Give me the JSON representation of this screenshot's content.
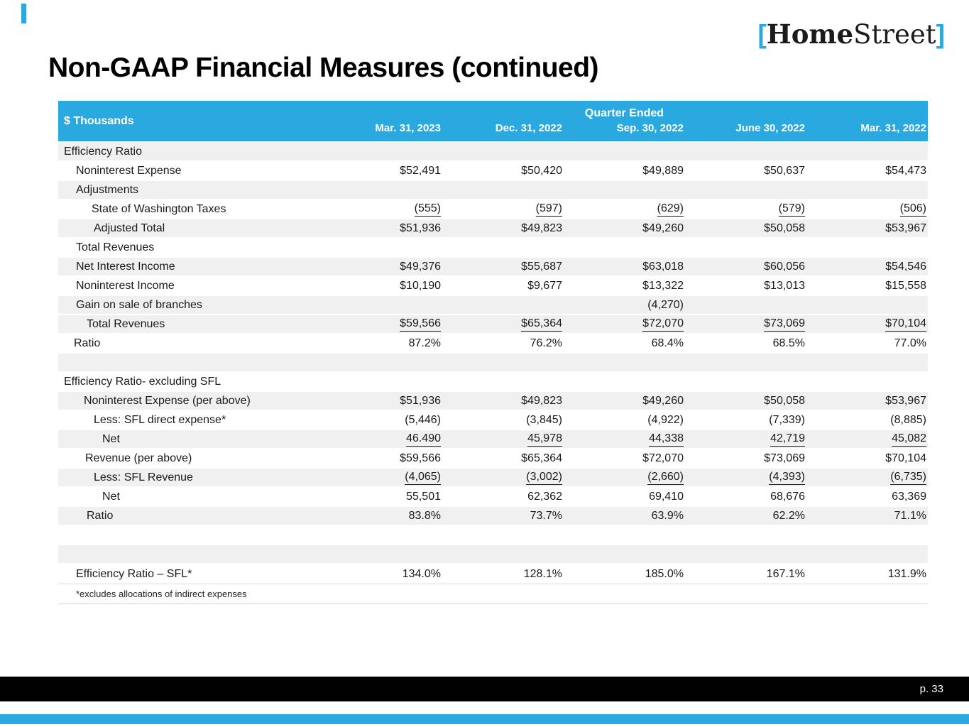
{
  "slide": {
    "title": "Non-GAAP Financial Measures (continued)",
    "logo": {
      "left_bracket": "[",
      "home": "Home",
      "street": "Street",
      "right_bracket": "]"
    },
    "page_number": "p. 33",
    "colors": {
      "accent_cyan": "#29A9E0",
      "row_shade": "#F0F0F0",
      "footer_black": "#010101"
    }
  },
  "table": {
    "unit_label": "$ Thousands",
    "group_header": "Quarter Ended",
    "columns": [
      "Mar. 31, 2023",
      "Dec. 31, 2022",
      "Sep. 30, 2022",
      "June 30, 2022",
      "Mar. 31, 2022"
    ],
    "rows": [
      {
        "type": "data",
        "label": "Efficiency Ratio",
        "indent": 8,
        "shaded": true,
        "underline": false,
        "values": [
          "",
          "",
          "",
          "",
          ""
        ]
      },
      {
        "type": "data",
        "label": "Noninterest Expense",
        "indent": 25,
        "shaded": false,
        "underline": false,
        "values": [
          "$52,491",
          "$50,420",
          "$49,889",
          "$50,637",
          "$54,473"
        ]
      },
      {
        "type": "data",
        "label": "Adjustments",
        "indent": 25,
        "shaded": true,
        "underline": false,
        "values": [
          "",
          "",
          "",
          "",
          ""
        ]
      },
      {
        "type": "data",
        "label": "State of Washington Taxes",
        "indent": 47,
        "shaded": false,
        "underline": true,
        "values": [
          "(555)",
          "(597)",
          "(629)",
          "(579)",
          "(506)"
        ]
      },
      {
        "type": "data",
        "label": "Adjusted Total",
        "indent": 50,
        "shaded": true,
        "underline": false,
        "values": [
          "$51,936",
          "$49,823",
          "$49,260",
          "$50,058",
          "$53,967"
        ]
      },
      {
        "type": "data",
        "label": "Total Revenues",
        "indent": 25,
        "shaded": false,
        "underline": false,
        "values": [
          "",
          "",
          "",
          "",
          ""
        ]
      },
      {
        "type": "data",
        "label": "Net Interest Income",
        "indent": 25,
        "shaded": true,
        "underline": false,
        "values": [
          "$49,376",
          "$55,687",
          "$63,018",
          "$60,056",
          "$54,546"
        ]
      },
      {
        "type": "data",
        "label": "Noninterest Income",
        "indent": 25,
        "shaded": false,
        "underline": false,
        "values": [
          "$10,190",
          "$9,677",
          "$13,322",
          "$13,013",
          "$15,558"
        ]
      },
      {
        "type": "data",
        "label": "Gain on sale of branches",
        "indent": 25,
        "shaded": true,
        "underline": false,
        "values": [
          "",
          "",
          "(4,270)",
          "",
          ""
        ]
      },
      {
        "type": "data",
        "label": "Total Revenues",
        "indent": 40,
        "shaded": true,
        "underline": true,
        "values": [
          "$59,566",
          "$65,364",
          "$72,070",
          "$73,069",
          "$70,104"
        ]
      },
      {
        "type": "data",
        "label": "Ratio",
        "indent": 22,
        "shaded": false,
        "underline": false,
        "values": [
          "87.2%",
          "76.2%",
          "68.4%",
          "68.5%",
          "77.0%"
        ]
      },
      {
        "type": "spacer",
        "label": "",
        "indent": 8,
        "shaded": true,
        "underline": false,
        "values": [
          "",
          "",
          "",
          "",
          ""
        ]
      },
      {
        "type": "data",
        "label": "Efficiency Ratio- excluding SFL",
        "indent": 8,
        "shaded": false,
        "underline": false,
        "values": [
          "",
          "",
          "",
          "",
          ""
        ]
      },
      {
        "type": "data",
        "label": "Noninterest Expense (per above)",
        "indent": 36,
        "shaded": true,
        "underline": false,
        "values": [
          "$51,936",
          "$49,823",
          "$49,260",
          "$50,058",
          "$53,967"
        ]
      },
      {
        "type": "data",
        "label": "Less: SFL direct expense*",
        "indent": 50,
        "shaded": false,
        "underline": false,
        "values": [
          "(5,446)",
          "(3,845)",
          "(4,922)",
          "(7,339)",
          "(8,885)"
        ]
      },
      {
        "type": "data",
        "label": "Net",
        "indent": 62,
        "shaded": true,
        "underline": true,
        "values": [
          "46.490",
          "45,978",
          "44,338",
          "42,719",
          "45,082"
        ]
      },
      {
        "type": "data",
        "label": "Revenue (per above)",
        "indent": 38,
        "shaded": false,
        "underline": false,
        "values": [
          "$59,566",
          "$65,364",
          "$72,070",
          "$73,069",
          "$70,104"
        ]
      },
      {
        "type": "data",
        "label": "Less: SFL Revenue",
        "indent": 50,
        "shaded": true,
        "underline": true,
        "values": [
          "(4,065)",
          "(3,002)",
          "(2,660)",
          "(4,393)",
          "(6,735)"
        ]
      },
      {
        "type": "data",
        "label": "Net",
        "indent": 62,
        "shaded": false,
        "underline": false,
        "values": [
          "55,501",
          "62,362",
          "69,410",
          "68,676",
          "63,369"
        ]
      },
      {
        "type": "data",
        "label": "Ratio",
        "indent": 40,
        "shaded": true,
        "underline": false,
        "values": [
          "83.8%",
          "73.7%",
          "63.9%",
          "62.2%",
          "71.1%"
        ]
      },
      {
        "type": "spacer",
        "label": "",
        "indent": 8,
        "shaded": false,
        "underline": false,
        "values": [
          "",
          "",
          "",
          "",
          ""
        ]
      },
      {
        "type": "spacer",
        "label": "",
        "indent": 8,
        "shaded": true,
        "underline": false,
        "values": [
          "",
          "",
          "",
          "",
          ""
        ]
      },
      {
        "type": "data",
        "label": "Efficiency Ratio – SFL*",
        "indent": 25,
        "shaded": false,
        "underline": false,
        "hairline": true,
        "values": [
          "134.0%",
          "128.1%",
          "185.0%",
          "167.1%",
          "131.9%"
        ]
      },
      {
        "type": "footnote",
        "label": "*excludes allocations of indirect expenses",
        "indent": 25,
        "shaded": false,
        "underline": false,
        "hairline": true,
        "values": [
          "",
          "",
          "",
          "",
          ""
        ]
      }
    ]
  }
}
